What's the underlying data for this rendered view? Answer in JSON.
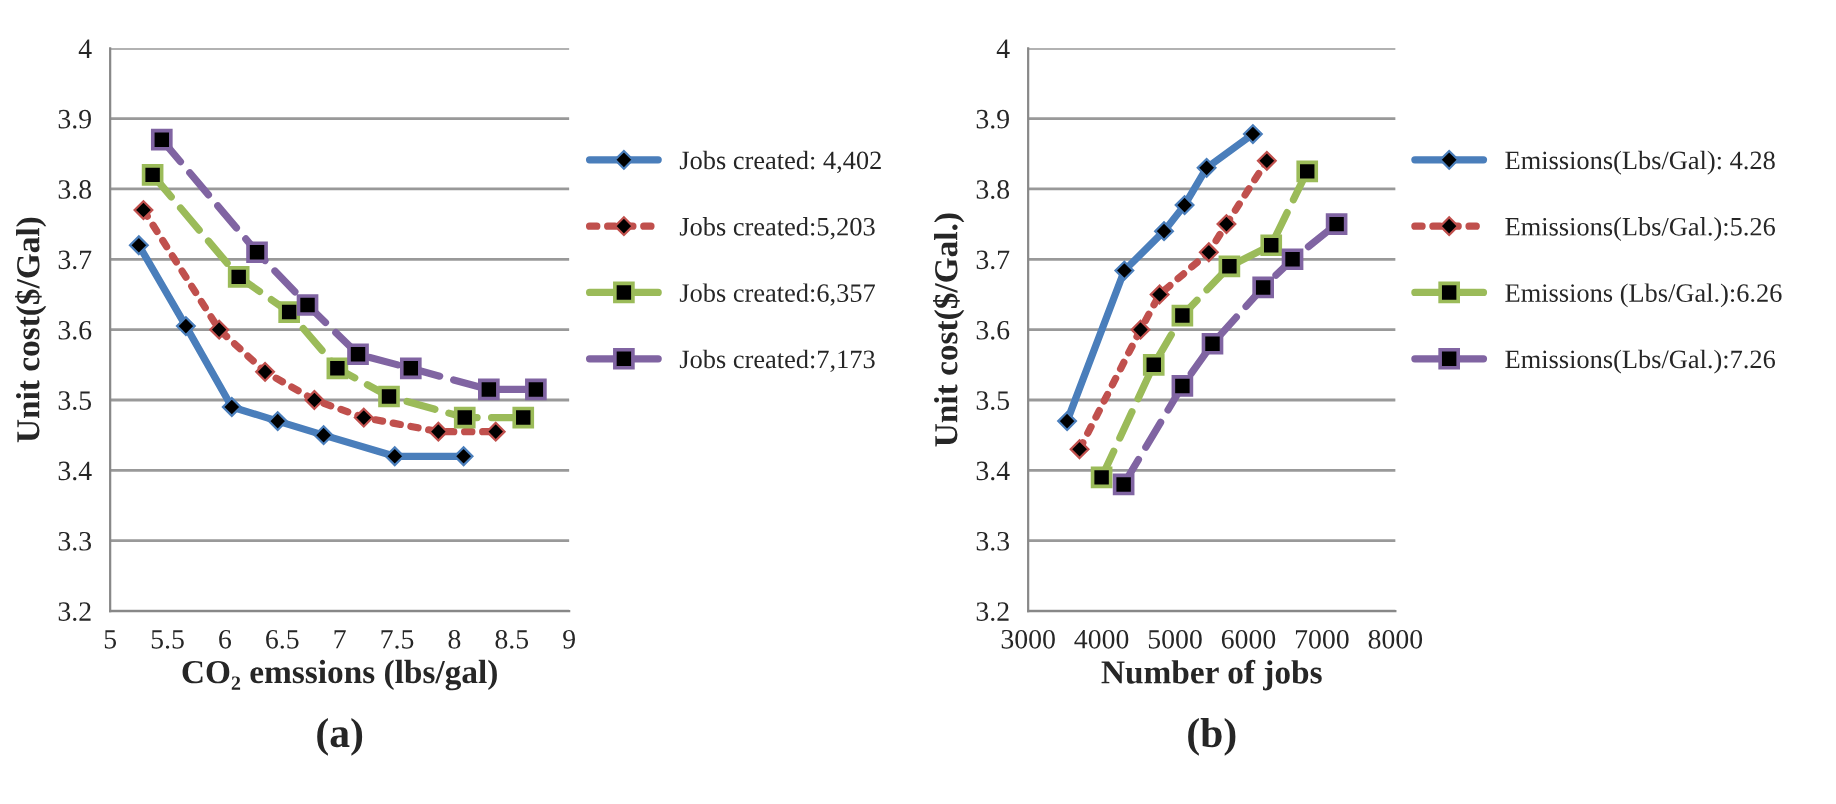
{
  "chart_data": [
    {
      "type": "line",
      "xlabel": "CO₂ emssions (lbs/gal)",
      "ylabel": "Unit cost($/Gal)",
      "annotations": [
        "(a)"
      ],
      "xlim": [
        5,
        9
      ],
      "xticks": [
        5,
        5.5,
        6,
        6.5,
        7,
        7.5,
        8,
        8.5,
        9
      ],
      "ylim": [
        3.2,
        4
      ],
      "yticks": [
        3.2,
        3.3,
        3.4,
        3.5,
        3.6,
        3.7,
        3.8,
        3.9,
        4
      ],
      "grid": "y",
      "legend": "right",
      "series": [
        {
          "name": "Jobs created: 4,402",
          "color": "#4a7ebb",
          "marker": "diamond",
          "line_style": "solid",
          "x": [
            5.25,
            5.66,
            6.06,
            6.46,
            6.86,
            7.48,
            8.08
          ],
          "values": [
            3.72,
            3.605,
            3.49,
            3.47,
            3.45,
            3.42,
            3.42
          ]
        },
        {
          "name": "Jobs created:5,203",
          "color": "#c0504d",
          "marker": "diamond",
          "line_style": "dotted",
          "x": [
            5.29,
            5.95,
            6.35,
            6.78,
            7.21,
            7.86,
            8.36
          ],
          "values": [
            3.77,
            3.6,
            3.54,
            3.5,
            3.475,
            3.455,
            3.455
          ]
        },
        {
          "name": "Jobs created:6,357",
          "color": "#9bbb59",
          "marker": "square",
          "line_style": "dashed",
          "x": [
            5.37,
            6.12,
            6.56,
            6.98,
            7.43,
            8.09,
            8.6
          ],
          "values": [
            3.82,
            3.675,
            3.625,
            3.545,
            3.505,
            3.475,
            3.475
          ]
        },
        {
          "name": "Jobs created:7,173",
          "color": "#8064a2",
          "marker": "square",
          "line_style": "dashed",
          "x": [
            5.45,
            6.28,
            6.72,
            7.16,
            7.62,
            8.3,
            8.71
          ],
          "values": [
            3.87,
            3.71,
            3.635,
            3.565,
            3.545,
            3.515,
            3.515
          ]
        }
      ]
    },
    {
      "type": "line",
      "xlabel": "Number of jobs",
      "ylabel": "Unit cost($/Gal.)",
      "annotations": [
        "(b)"
      ],
      "xlim": [
        3000,
        8000
      ],
      "xticks": [
        3000,
        4000,
        5000,
        6000,
        7000,
        8000
      ],
      "ylim": [
        3.2,
        4
      ],
      "yticks": [
        3.2,
        3.3,
        3.4,
        3.5,
        3.6,
        3.7,
        3.8,
        3.9,
        4
      ],
      "grid": "y",
      "legend": "right",
      "series": [
        {
          "name": "Emissions(Lbs/Gal): 4.28",
          "color": "#4a7ebb",
          "marker": "diamond",
          "line_style": "solid",
          "x": [
            3530,
            4310,
            4850,
            5130,
            5430,
            6060
          ],
          "values": [
            3.47,
            3.684,
            3.74,
            3.777,
            3.83,
            3.878
          ]
        },
        {
          "name": "Emissions(Lbs/Gal.):5.26",
          "color": "#c0504d",
          "marker": "diamond",
          "line_style": "dotted",
          "x": [
            3700,
            4530,
            4790,
            5460,
            5700,
            6250
          ],
          "values": [
            3.43,
            3.6,
            3.65,
            3.71,
            3.75,
            3.84
          ]
        },
        {
          "name": "Emissions (Lbs/Gal.):6.26",
          "color": "#9bbb59",
          "marker": "square",
          "line_style": "dashed",
          "x": [
            4000,
            4710,
            5100,
            5740,
            6310,
            6800
          ],
          "values": [
            3.39,
            3.55,
            3.62,
            3.69,
            3.72,
            3.825
          ]
        },
        {
          "name": "Emissions(Lbs/Gal.):7.26",
          "color": "#8064a2",
          "marker": "square",
          "line_style": "dashed",
          "x": [
            4300,
            5100,
            5510,
            6200,
            6600,
            7200
          ],
          "values": [
            3.38,
            3.52,
            3.58,
            3.66,
            3.7,
            3.75
          ]
        }
      ]
    }
  ]
}
